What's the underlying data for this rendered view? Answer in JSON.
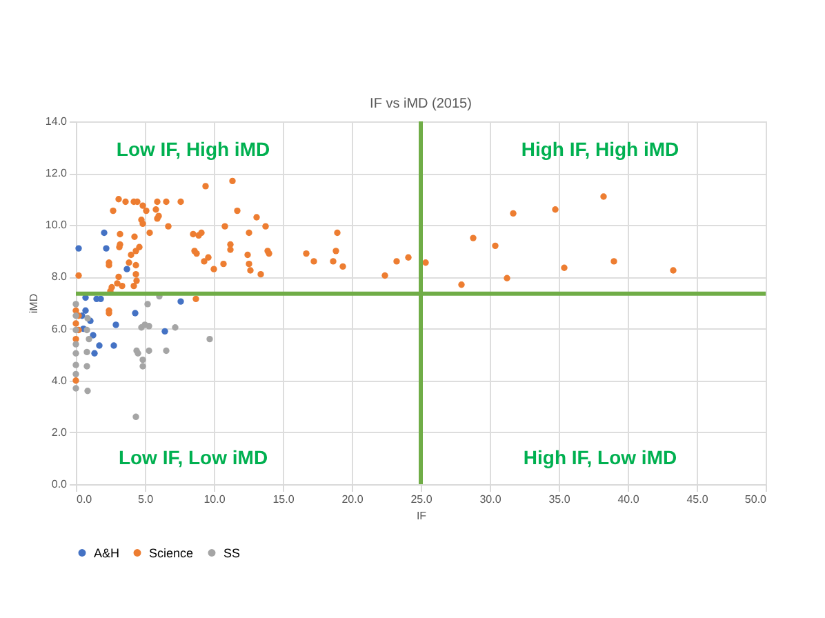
{
  "chart_data": {
    "type": "scatter",
    "title": "IF vs iMD (2015)",
    "xlabel": "IF",
    "ylabel": "iMD",
    "xlim": [
      0,
      50
    ],
    "ylim": [
      0,
      14
    ],
    "xticks": [
      {
        "value": 0,
        "label": "0.0"
      },
      {
        "value": 5,
        "label": "5.0"
      },
      {
        "value": 10,
        "label": "10.0"
      },
      {
        "value": 15,
        "label": "15.0"
      },
      {
        "value": 20,
        "label": "20.0"
      },
      {
        "value": 25,
        "label": "25.0"
      },
      {
        "value": 30,
        "label": "30.0"
      },
      {
        "value": 35,
        "label": "35.0"
      },
      {
        "value": 40,
        "label": "40.0"
      },
      {
        "value": 45,
        "label": "45.0"
      },
      {
        "value": 50,
        "label": "50.0"
      }
    ],
    "yticks": [
      {
        "value": 0,
        "label": "0.0"
      },
      {
        "value": 2,
        "label": "2.0"
      },
      {
        "value": 4,
        "label": "4.0"
      },
      {
        "value": 6,
        "label": "6.0"
      },
      {
        "value": 8,
        "label": "8.0"
      },
      {
        "value": 10,
        "label": "10.0"
      },
      {
        "value": 12,
        "label": "12.0"
      },
      {
        "value": 14,
        "label": "14.0"
      }
    ],
    "grid": true,
    "legend": "bottom",
    "marker": "circle",
    "series": [
      {
        "name": "A&H",
        "color": "#4472c4",
        "x": [
          0.2,
          2.05,
          2.2,
          3.7,
          0.7,
          1.5,
          1.8,
          0.7,
          0.45,
          1.05,
          4.3,
          7.6,
          2.9,
          0.55,
          1.25,
          6.45,
          1.7,
          2.75,
          1.35
        ],
        "values": [
          9.1,
          9.7,
          9.1,
          8.3,
          7.2,
          7.15,
          7.15,
          6.7,
          6.5,
          6.3,
          6.6,
          7.05,
          6.15,
          6.0,
          5.75,
          5.9,
          5.35,
          5.35,
          5.05
        ]
      },
      {
        "name": "Science",
        "color": "#ed7d31",
        "x": [
          9.4,
          11.35,
          3.1,
          3.6,
          4.2,
          4.45,
          4.85,
          2.7,
          5.1,
          5.9,
          6.55,
          7.6,
          5.8,
          6.0,
          5.9,
          4.75,
          4.85,
          6.7,
          11.7,
          13.1,
          10.8,
          13.75,
          5.35,
          3.2,
          4.25,
          8.5,
          8.9,
          9.1,
          12.55,
          3.2,
          3.15,
          4.6,
          11.2,
          11.2,
          8.6,
          8.75,
          4.35,
          4.0,
          9.6,
          9.3,
          12.45,
          13.9,
          14.0,
          2.4,
          2.4,
          3.85,
          4.35,
          10.7,
          12.55,
          12.65,
          10.0,
          13.4,
          0.2,
          3.1,
          4.35,
          4.4,
          3.0,
          3.35,
          2.6,
          2.5,
          4.2,
          8.7,
          2.4,
          2.4,
          0.0,
          0.2,
          0.0,
          0.2,
          0.0,
          0.0,
          16.7,
          17.25,
          18.95,
          18.85,
          18.65,
          19.35,
          22.4,
          23.25,
          24.1,
          25.35,
          27.95,
          28.8,
          30.4,
          31.25,
          31.7,
          34.75,
          35.4,
          38.25,
          39.0,
          43.3
        ],
        "values": [
          11.5,
          11.7,
          11.0,
          10.9,
          10.9,
          10.9,
          10.75,
          10.55,
          10.55,
          10.9,
          10.9,
          10.9,
          10.6,
          10.35,
          10.25,
          10.2,
          10.05,
          9.95,
          10.55,
          10.3,
          9.95,
          9.95,
          9.7,
          9.65,
          9.55,
          9.65,
          9.6,
          9.7,
          9.7,
          9.25,
          9.15,
          9.15,
          9.25,
          9.05,
          9.0,
          8.9,
          9.0,
          8.85,
          8.75,
          8.6,
          8.85,
          9.0,
          8.9,
          8.55,
          8.45,
          8.55,
          8.45,
          8.5,
          8.5,
          8.25,
          8.3,
          8.1,
          8.05,
          8.0,
          8.1,
          7.85,
          7.75,
          7.65,
          7.6,
          7.45,
          7.65,
          7.15,
          6.7,
          6.6,
          6.7,
          6.5,
          6.2,
          5.95,
          5.6,
          4.0,
          8.9,
          8.6,
          9.7,
          9.0,
          8.6,
          8.4,
          8.05,
          8.6,
          8.75,
          8.55,
          7.7,
          9.5,
          9.2,
          7.95,
          10.45,
          10.6,
          8.35,
          11.1,
          8.6,
          8.25
        ]
      },
      {
        "name": "SS",
        "color": "#a5a5a5",
        "x": [
          0.0,
          0.0,
          0.0,
          0.0,
          0.0,
          0.0,
          0.0,
          0.0,
          0.85,
          0.8,
          0.95,
          0.8,
          0.8,
          0.85,
          5.2,
          4.75,
          5.0,
          5.3,
          6.05,
          7.2,
          9.7,
          4.4,
          4.5,
          5.3,
          6.55,
          4.85,
          4.85,
          4.35
        ],
        "values": [
          6.95,
          6.5,
          5.95,
          5.4,
          5.05,
          4.6,
          4.25,
          3.7,
          6.4,
          5.95,
          5.6,
          5.1,
          4.55,
          3.6,
          6.95,
          6.05,
          6.15,
          6.1,
          7.25,
          6.05,
          5.6,
          5.15,
          5.05,
          5.15,
          5.15,
          4.8,
          4.55,
          2.6
        ]
      }
    ],
    "ref_lines": [
      {
        "axis": "x",
        "value": 25,
        "color": "#70ad47"
      },
      {
        "axis": "y",
        "value": 7.35,
        "color": "#70ad47"
      }
    ],
    "annotations": [
      "Low IF, High iMD",
      "High IF, High iMD",
      "Low IF, Low iMD",
      "High IF, Low iMD"
    ]
  }
}
